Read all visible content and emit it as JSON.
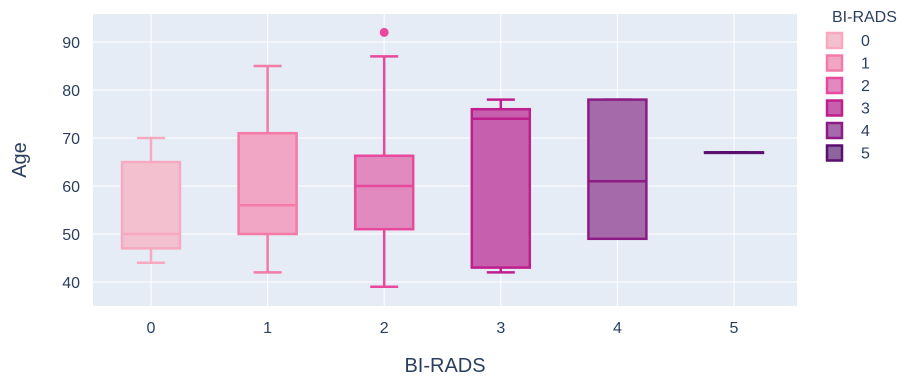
{
  "chart_data": {
    "type": "box",
    "xlabel": "BI-RADS",
    "ylabel": "Age",
    "categories": [
      "0",
      "1",
      "2",
      "3",
      "4",
      "5"
    ],
    "ylim": [
      35,
      95
    ],
    "yticks": [
      40,
      50,
      60,
      70,
      80,
      90
    ],
    "grid": true,
    "legend": {
      "title": "BI-RADS",
      "position": "right",
      "entries": [
        "0",
        "1",
        "2",
        "3",
        "4",
        "5"
      ]
    },
    "colors": {
      "plot_bg": "#e5ecf6",
      "grid": "#ffffff",
      "series": [
        "#f7aabf",
        "#f47aa8",
        "#e8499c",
        "#bf1e8d",
        "#8c1b86",
        "#5a0f6e"
      ],
      "fill": [
        "#f3c0cf",
        "#f2a6c5",
        "#e08ac0",
        "#c65fae",
        "#a56aaa",
        "#8d64a0"
      ]
    },
    "series": [
      {
        "name": "0",
        "min": 44,
        "q1": 47,
        "median": 50,
        "q3": 65,
        "max": 70,
        "outliers": []
      },
      {
        "name": "1",
        "min": 42,
        "q1": 50,
        "median": 56,
        "q3": 71,
        "max": 85,
        "outliers": []
      },
      {
        "name": "2",
        "min": 39,
        "q1": 51,
        "median": 60,
        "q3": 66.3,
        "max": 87,
        "outliers": [
          92
        ]
      },
      {
        "name": "3",
        "min": 42,
        "q1": 43,
        "median": 74,
        "q3": 76,
        "max": 78,
        "outliers": []
      },
      {
        "name": "4",
        "min": 49,
        "q1": 49,
        "median": 61,
        "q3": 78,
        "max": 78,
        "outliers": []
      },
      {
        "name": "5",
        "min": 67,
        "q1": 67,
        "median": 67,
        "q3": 67,
        "max": 67,
        "outliers": []
      }
    ]
  }
}
